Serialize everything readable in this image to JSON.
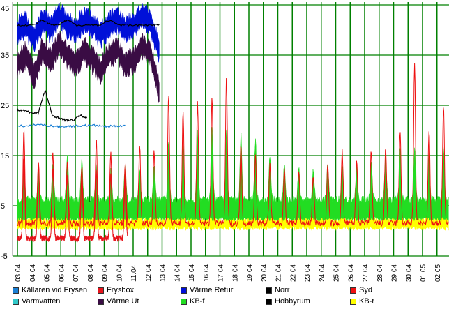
{
  "chart_data": {
    "type": "line",
    "title": "",
    "xlabel": "",
    "ylabel": "",
    "ylim": [
      -5,
      45
    ],
    "yticks": [
      -5,
      5,
      15,
      25,
      35,
      45
    ],
    "grid": true,
    "grid_color": "#008000",
    "x_categories": [
      "03.04",
      "04.04",
      "05.04",
      "06.04",
      "07.04",
      "08.04",
      "09.04",
      "10.04",
      "11.04",
      "12.04",
      "13.04",
      "14.04",
      "15.04",
      "16.04",
      "17.04",
      "18.04",
      "19.04",
      "20.04",
      "21.04",
      "22.04",
      "23.04",
      "24.04",
      "25.04",
      "26.04",
      "27.04",
      "28.04",
      "29.04",
      "30.04",
      "01.05",
      "02.05"
    ],
    "legend_position": "bottom",
    "legend": [
      {
        "name": "Källaren vid Frysen",
        "color": "#1a7fd4"
      },
      {
        "name": "Frysbox",
        "color": "#e8141c"
      },
      {
        "name": "Värme Retur",
        "color": "#0010d8"
      },
      {
        "name": "Norr",
        "color": "#000000"
      },
      {
        "name": "Syd",
        "color": "#ee1010"
      },
      {
        "name": "Varmvatten",
        "color": "#30c8c8"
      },
      {
        "name": "Värme Ut",
        "color": "#3a0c44"
      },
      {
        "name": "KB-f",
        "color": "#22dd22"
      },
      {
        "name": "Hobbyrum",
        "color": "#000000"
      },
      {
        "name": "KB-r",
        "color": "#ffff00"
      }
    ],
    "series": [
      {
        "name": "Värme Retur",
        "color": "#0010d8",
        "x_range": [
          3.0,
          12.8
        ],
        "values": [
          40,
          41,
          38,
          42,
          40,
          43,
          41,
          40,
          42,
          41,
          39,
          41,
          42,
          40,
          41,
          43,
          41,
          36
        ],
        "band": 4
      },
      {
        "name": "Värme Ut",
        "color": "#3a0c44",
        "x_range": [
          3.0,
          12.8
        ],
        "values": [
          33,
          35,
          31,
          36,
          34,
          37,
          35,
          33,
          36,
          34,
          32,
          35,
          36,
          33,
          34,
          37,
          35,
          28
        ],
        "band": 4
      },
      {
        "name": "Hobbyrum",
        "color": "#000000",
        "x_range": [
          3.0,
          12.8
        ],
        "values": [
          41,
          41,
          41,
          42,
          41,
          41,
          42,
          41,
          41,
          41,
          41,
          42,
          41,
          41,
          41,
          41,
          41,
          41
        ],
        "band": 0
      },
      {
        "name": "Norr",
        "color": "#000000",
        "x_range": [
          3.0,
          7.8
        ],
        "values": [
          24,
          24,
          23.5,
          23.5,
          28,
          23,
          22.5,
          22,
          22,
          23,
          22.5
        ],
        "band": 0
      },
      {
        "name": "Källaren vid Frysen",
        "color": "#1a7fd4",
        "x_range": [
          3.0,
          10.5
        ],
        "values": [
          21,
          20.8,
          21.2,
          21,
          20.8,
          20.8,
          20.9,
          21,
          21,
          20.8,
          20.9,
          21
        ],
        "band": 0
      },
      {
        "name": "Syd",
        "color": "#ee1010",
        "x_range": [
          3.0,
          32.8
        ],
        "peaks": [
          20,
          14,
          16,
          14,
          13,
          18,
          16,
          13,
          17,
          16,
          27,
          24,
          26,
          27,
          31,
          17,
          15,
          13,
          12,
          12,
          11,
          13,
          16,
          14,
          16,
          17,
          20,
          33,
          20,
          25
        ],
        "base": 1.5,
        "band": 0
      },
      {
        "name": "KB-f",
        "color": "#22dd22",
        "x_range": [
          3.0,
          32.8
        ],
        "peaks": [
          9,
          9,
          10,
          12,
          11,
          10,
          9,
          10,
          9,
          10,
          15,
          14,
          16,
          17,
          17,
          16,
          15,
          12,
          10,
          9,
          9,
          10,
          10,
          10,
          11,
          12,
          13,
          13,
          12,
          13
        ],
        "base": 3,
        "band": 5
      },
      {
        "name": "KB-r",
        "color": "#ffff00",
        "x_range": [
          3.0,
          32.8
        ],
        "peaks": [
          2.5,
          2,
          2.5,
          2,
          2.5,
          2,
          2.5,
          2,
          2.5,
          2,
          2.5,
          2,
          2.5,
          3,
          3,
          2.5,
          2,
          1.5,
          1.5,
          1.5,
          1.5,
          1.5,
          2,
          2,
          2,
          2.5,
          2.5,
          2.5,
          2.5,
          2.5
        ],
        "base": 0.5,
        "band": 2
      },
      {
        "name": "Frysbox",
        "color": "#e8141c",
        "x_range": [
          3.0,
          10.6
        ],
        "peaks": [
          14,
          13,
          12,
          11,
          10,
          12,
          11,
          10
        ],
        "base": -1.5,
        "band": 0
      }
    ]
  }
}
